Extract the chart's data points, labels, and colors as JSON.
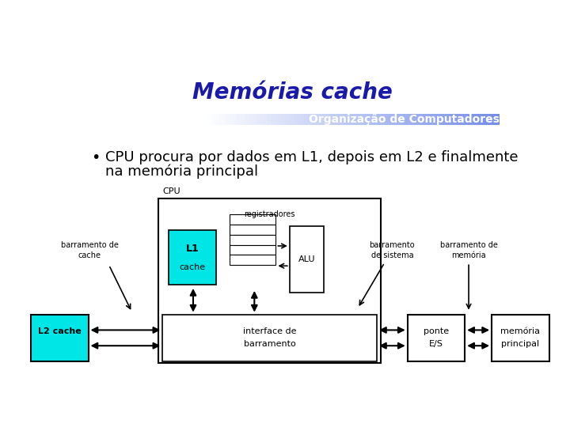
{
  "title": "Memórias cache",
  "title_color": "#1a1aaa",
  "subtitle": "Organização de Computadores",
  "subtitle_text_color": "#ffffff",
  "bullet_text_line1": "CPU procura por dados em L1, depois em L2 e finalmente",
  "bullet_text_line2": "na memória principal",
  "slide_bg": "#d0d4e8",
  "border_color": "#888888",
  "cyan_color": "#00e5e5",
  "black": "#000000",
  "white": "#ffffff",
  "font_size_title": 20,
  "font_size_subtitle": 10,
  "font_size_bullet": 13,
  "font_size_diagram": 8,
  "font_size_small": 7
}
